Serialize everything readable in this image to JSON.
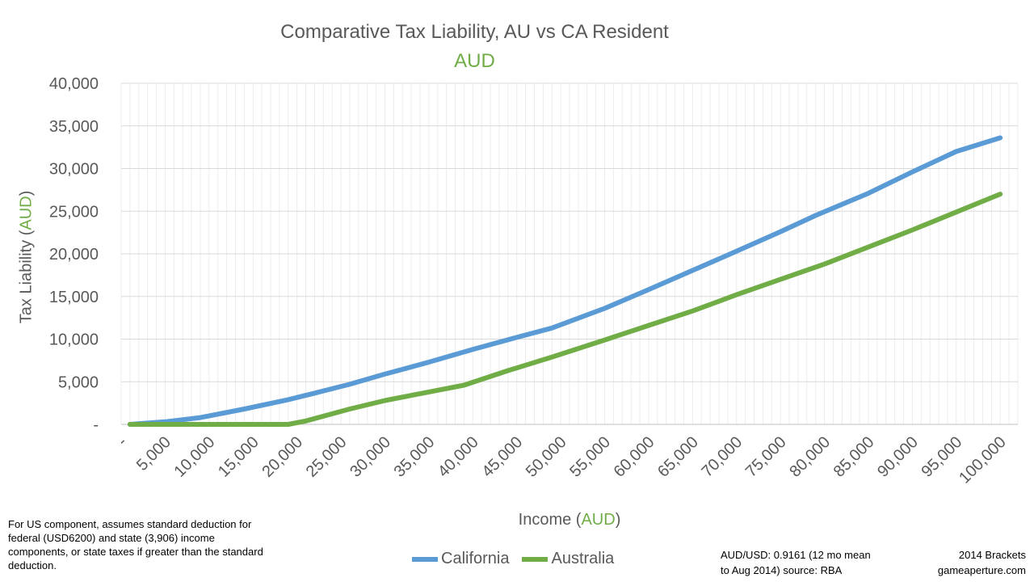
{
  "chart_data": {
    "type": "line",
    "title": "Comparative Tax Liability, AU vs CA Resident",
    "subtitle": "AUD",
    "xlabel_prefix": "Income (",
    "xlabel_accent": "AUD",
    "xlabel_suffix": ")",
    "ylabel_prefix": "Tax Liability (",
    "ylabel_accent": "AUD",
    "ylabel_suffix": ")",
    "ylim": [
      0,
      40000
    ],
    "yticks": [
      0,
      5000,
      10000,
      15000,
      20000,
      25000,
      30000,
      35000,
      40000
    ],
    "ytick_labels": [
      "-",
      "5,000",
      "10,000",
      "15,000",
      "20,000",
      "25,000",
      "30,000",
      "35,000",
      "40,000"
    ],
    "xlim": [
      0,
      102000
    ],
    "xticks": [
      0,
      5000,
      10000,
      15000,
      20000,
      25000,
      30000,
      35000,
      40000,
      45000,
      50000,
      55000,
      60000,
      65000,
      70000,
      75000,
      80000,
      85000,
      90000,
      95000,
      100000
    ],
    "xtick_labels": [
      "-",
      "5,000",
      "10,000",
      "15,000",
      "20,000",
      "25,000",
      "30,000",
      "35,000",
      "40,000",
      "45,000",
      "50,000",
      "55,000",
      "60,000",
      "65,000",
      "70,000",
      "75,000",
      "80,000",
      "85,000",
      "90,000",
      "95,000",
      "100,000"
    ],
    "grid": true,
    "legend_position": "bottom",
    "series": [
      {
        "name": "California",
        "color": "#5b9bd5",
        "x": [
          1000,
          5000,
          9000,
          14000,
          19000,
          21000,
          26000,
          30000,
          35000,
          40000,
          45000,
          49000,
          55000,
          60000,
          64000,
          70000,
          75000,
          79000,
          85000,
          90000,
          95000,
          100000
        ],
        "y": [
          0,
          300,
          800,
          1800,
          2900,
          3400,
          4700,
          5900,
          7300,
          8800,
          10200,
          11300,
          13600,
          15800,
          17600,
          20300,
          22600,
          24500,
          27100,
          29600,
          32000,
          33600
        ]
      },
      {
        "name": "Australia",
        "color": "#70ad47",
        "x": [
          1000,
          5000,
          10000,
          15000,
          19000,
          21000,
          26000,
          30000,
          35000,
          39000,
          44000,
          49000,
          55000,
          60000,
          65000,
          70000,
          75000,
          80000,
          85000,
          90000,
          95000,
          100000
        ],
        "y": [
          0,
          0,
          0,
          0,
          0,
          400,
          1800,
          2800,
          3800,
          4600,
          6300,
          7900,
          9900,
          11600,
          13300,
          15200,
          17000,
          18800,
          20800,
          22800,
          24900,
          27000
        ]
      }
    ]
  },
  "notes": {
    "assumption": "For US component,  assumes standard deduction for federal (USD6200) and state (3,906) income components,  or state taxes if greater than the standard deduction.",
    "rate_line1": "AUD/USD: 0.9161 (12 mo mean",
    "rate_line2": "to Aug 2014) source: RBA",
    "source_line1": "2014 Brackets",
    "source_line2": "gameaperture.com"
  }
}
